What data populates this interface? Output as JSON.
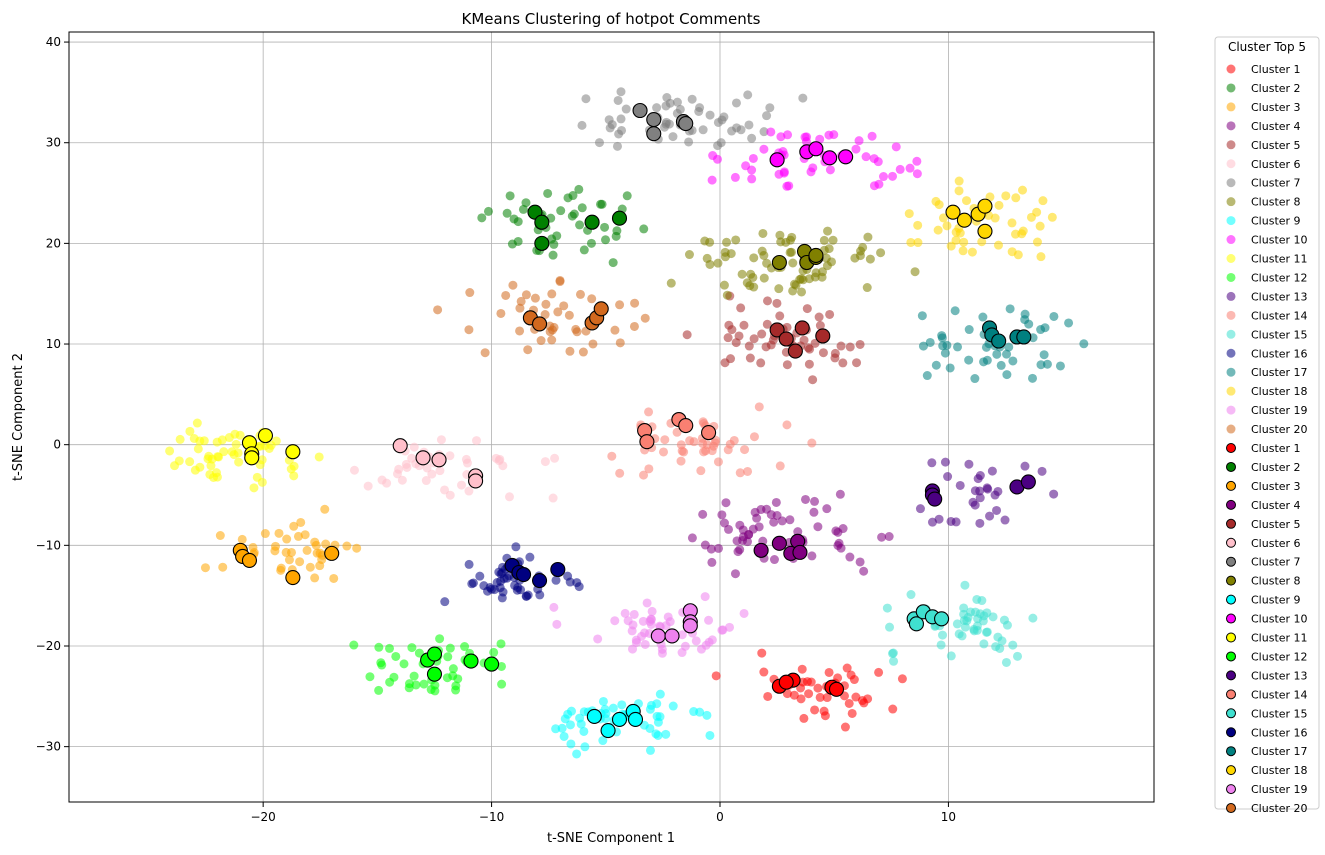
{
  "chart_data": {
    "type": "scatter",
    "title": "KMeans Clustering of hotpot Comments",
    "xlabel": "t-SNE Component 1",
    "ylabel": "t-SNE Component 2",
    "xlim": [
      -28.5,
      19.0
    ],
    "ylim": [
      -35.5,
      41.0
    ],
    "xticks": [
      -20,
      -10,
      0,
      10
    ],
    "yticks": [
      -30,
      -20,
      -10,
      0,
      10,
      20,
      30,
      40
    ],
    "grid": true,
    "legend": {
      "title": "Cluster Top 5",
      "placement": "outside-right",
      "labels": [
        "Cluster 1",
        "Cluster 2",
        "Cluster 3",
        "Cluster 4",
        "Cluster 5",
        "Cluster 6",
        "Cluster 7",
        "Cluster 8",
        "Cluster 9",
        "Cluster 10",
        "Cluster 11",
        "Cluster 12",
        "Cluster 13",
        "Cluster 14",
        "Cluster 15",
        "Cluster 16",
        "Cluster 17",
        "Cluster 18",
        "Cluster 19",
        "Cluster 20",
        "Cluster 1",
        "Cluster 2",
        "Cluster 3",
        "Cluster 4",
        "Cluster 5",
        "Cluster 6",
        "Cluster 7",
        "Cluster 8",
        "Cluster 9",
        "Cluster 10",
        "Cluster 11",
        "Cluster 12",
        "Cluster 13",
        "Cluster 14",
        "Cluster 15",
        "Cluster 16",
        "Cluster 17",
        "Cluster 18",
        "Cluster 19",
        "Cluster 20"
      ]
    },
    "series": [
      {
        "name": "Cluster 1",
        "color": "#ff0000",
        "center": [
          4.2,
          -24.5
        ],
        "spread": [
          3.0,
          3.0
        ],
        "count": 45,
        "top5": [
          [
            2.6,
            -24.0
          ],
          [
            3.2,
            -23.4
          ],
          [
            2.9,
            -23.6
          ],
          [
            4.9,
            -24.1
          ],
          [
            5.1,
            -24.3
          ]
        ]
      },
      {
        "name": "Cluster 2",
        "color": "#008000",
        "center": [
          -7.0,
          22.0
        ],
        "spread": [
          3.2,
          2.8
        ],
        "count": 45,
        "top5": [
          [
            -8.1,
            23.1
          ],
          [
            -7.8,
            22.1
          ],
          [
            -7.8,
            20.0
          ],
          [
            -5.6,
            22.1
          ],
          [
            -4.4,
            22.5
          ]
        ]
      },
      {
        "name": "Cluster 3",
        "color": "#ffa500",
        "center": [
          -18.5,
          -10.5
        ],
        "spread": [
          2.8,
          3.0
        ],
        "count": 40,
        "top5": [
          [
            -21.0,
            -10.5
          ],
          [
            -20.9,
            -11.1
          ],
          [
            -20.6,
            -11.5
          ],
          [
            -18.7,
            -13.2
          ],
          [
            -17.0,
            -10.8
          ]
        ]
      },
      {
        "name": "Cluster 4",
        "color": "#800080",
        "center": [
          3.0,
          -9.0
        ],
        "spread": [
          3.8,
          3.0
        ],
        "count": 60,
        "top5": [
          [
            1.8,
            -10.5
          ],
          [
            2.6,
            -9.8
          ],
          [
            3.1,
            -10.8
          ],
          [
            3.4,
            -9.6
          ],
          [
            3.5,
            -10.7
          ]
        ]
      },
      {
        "name": "Cluster 5",
        "color": "#a52a2a",
        "center": [
          3.0,
          10.5
        ],
        "spread": [
          3.2,
          3.0
        ],
        "count": 55,
        "top5": [
          [
            2.5,
            11.4
          ],
          [
            2.9,
            10.5
          ],
          [
            3.3,
            9.3
          ],
          [
            3.6,
            11.6
          ],
          [
            4.5,
            10.8
          ]
        ]
      },
      {
        "name": "Cluster 6",
        "color": "#ffc0cb",
        "center": [
          -12.0,
          -2.5
        ],
        "spread": [
          4.0,
          2.5
        ],
        "count": 40,
        "top5": [
          [
            -14.0,
            -0.1
          ],
          [
            -13.0,
            -1.3
          ],
          [
            -12.3,
            -1.5
          ],
          [
            -10.7,
            -3.1
          ],
          [
            -10.7,
            -3.6
          ]
        ]
      },
      {
        "name": "Cluster 7",
        "color": "#808080",
        "center": [
          -2.5,
          32.0
        ],
        "spread": [
          4.5,
          2.8
        ],
        "count": 55,
        "top5": [
          [
            -3.5,
            33.2
          ],
          [
            -2.9,
            32.3
          ],
          [
            -2.9,
            30.9
          ],
          [
            -1.6,
            32.1
          ],
          [
            -1.5,
            31.9
          ]
        ]
      },
      {
        "name": "Cluster 8",
        "color": "#808000",
        "center": [
          3.0,
          18.0
        ],
        "spread": [
          4.0,
          3.0
        ],
        "count": 70,
        "top5": [
          [
            2.6,
            18.1
          ],
          [
            3.7,
            19.2
          ],
          [
            3.8,
            18.1
          ],
          [
            4.2,
            18.6
          ],
          [
            4.2,
            18.8
          ]
        ]
      },
      {
        "name": "Cluster 9",
        "color": "#00ffff",
        "center": [
          -4.5,
          -27.5
        ],
        "spread": [
          3.2,
          2.5
        ],
        "count": 55,
        "top5": [
          [
            -5.5,
            -27.0
          ],
          [
            -4.9,
            -28.4
          ],
          [
            -4.4,
            -27.3
          ],
          [
            -3.8,
            -26.5
          ],
          [
            -3.7,
            -27.3
          ]
        ]
      },
      {
        "name": "Cluster 10",
        "color": "#ff00ff",
        "center": [
          4.5,
          28.5
        ],
        "spread": [
          3.5,
          3.0
        ],
        "count": 50,
        "top5": [
          [
            2.5,
            28.3
          ],
          [
            3.8,
            29.1
          ],
          [
            4.2,
            29.4
          ],
          [
            4.8,
            28.5
          ],
          [
            5.5,
            28.6
          ]
        ]
      },
      {
        "name": "Cluster 11",
        "color": "#ffff00",
        "center": [
          -21.0,
          -1.0
        ],
        "spread": [
          2.8,
          3.2
        ],
        "count": 55,
        "top5": [
          [
            -20.6,
            0.2
          ],
          [
            -20.5,
            -0.9
          ],
          [
            -20.5,
            -1.3
          ],
          [
            -19.9,
            0.9
          ],
          [
            -18.7,
            -0.7
          ]
        ]
      },
      {
        "name": "Cluster 12",
        "color": "#00ff00",
        "center": [
          -12.5,
          -22.5
        ],
        "spread": [
          3.2,
          3.0
        ],
        "count": 45,
        "top5": [
          [
            -12.8,
            -21.4
          ],
          [
            -12.5,
            -20.8
          ],
          [
            -12.5,
            -22.8
          ],
          [
            -10.9,
            -21.5
          ],
          [
            -10.0,
            -21.8
          ]
        ]
      },
      {
        "name": "Cluster 13",
        "color": "#4b0082",
        "center": [
          11.5,
          -5.0
        ],
        "spread": [
          3.0,
          3.5
        ],
        "count": 30,
        "top5": [
          [
            9.3,
            -4.6
          ],
          [
            9.3,
            -5.0
          ],
          [
            9.4,
            -5.4
          ],
          [
            13.0,
            -4.2
          ],
          [
            13.5,
            -3.7
          ]
        ]
      },
      {
        "name": "Cluster 14",
        "color": "#fa8072",
        "center": [
          -1.0,
          0.5
        ],
        "spread": [
          3.5,
          3.5
        ],
        "count": 50,
        "top5": [
          [
            -3.3,
            1.4
          ],
          [
            -3.2,
            0.3
          ],
          [
            -1.8,
            2.5
          ],
          [
            -1.5,
            1.9
          ],
          [
            -0.5,
            1.2
          ]
        ]
      },
      {
        "name": "Cluster 15",
        "color": "#40e0d0",
        "center": [
          10.5,
          -18.0
        ],
        "spread": [
          3.0,
          2.5
        ],
        "count": 55,
        "top5": [
          [
            8.5,
            -17.3
          ],
          [
            8.6,
            -17.8
          ],
          [
            8.9,
            -16.6
          ],
          [
            9.3,
            -17.1
          ],
          [
            9.7,
            -17.3
          ]
        ]
      },
      {
        "name": "Cluster 16",
        "color": "#000080",
        "center": [
          -9.0,
          -13.5
        ],
        "spread": [
          2.5,
          2.5
        ],
        "count": 50,
        "top5": [
          [
            -9.1,
            -12.0
          ],
          [
            -8.8,
            -12.7
          ],
          [
            -8.6,
            -12.9
          ],
          [
            -7.9,
            -13.5
          ],
          [
            -7.1,
            -12.4
          ]
        ]
      },
      {
        "name": "Cluster 17",
        "color": "#008080",
        "center": [
          12.5,
          10.0
        ],
        "spread": [
          3.0,
          3.0
        ],
        "count": 45,
        "top5": [
          [
            11.8,
            11.6
          ],
          [
            11.9,
            10.9
          ],
          [
            12.2,
            10.3
          ],
          [
            13.0,
            10.7
          ],
          [
            13.3,
            10.7
          ]
        ]
      },
      {
        "name": "Cluster 18",
        "color": "#ffd700",
        "center": [
          11.5,
          22.5
        ],
        "spread": [
          3.2,
          3.5
        ],
        "count": 45,
        "top5": [
          [
            10.2,
            23.1
          ],
          [
            10.7,
            22.3
          ],
          [
            11.3,
            22.9
          ],
          [
            11.6,
            23.7
          ],
          [
            11.6,
            21.2
          ]
        ]
      },
      {
        "name": "Cluster 19",
        "color": "#ee82ee",
        "center": [
          -2.5,
          -18.5
        ],
        "spread": [
          3.5,
          2.5
        ],
        "count": 50,
        "top5": [
          [
            -2.7,
            -19.0
          ],
          [
            -2.1,
            -19.0
          ],
          [
            -1.3,
            -16.5
          ],
          [
            -1.3,
            -17.6
          ],
          [
            -1.3,
            -18.0
          ]
        ]
      },
      {
        "name": "Cluster 20",
        "color": "#d2691e",
        "center": [
          -7.5,
          12.5
        ],
        "spread": [
          3.5,
          3.5
        ],
        "count": 45,
        "top5": [
          [
            -8.3,
            12.6
          ],
          [
            -7.9,
            12.0
          ],
          [
            -5.6,
            12.1
          ],
          [
            -5.4,
            12.6
          ],
          [
            -5.2,
            13.5
          ]
        ]
      }
    ]
  }
}
